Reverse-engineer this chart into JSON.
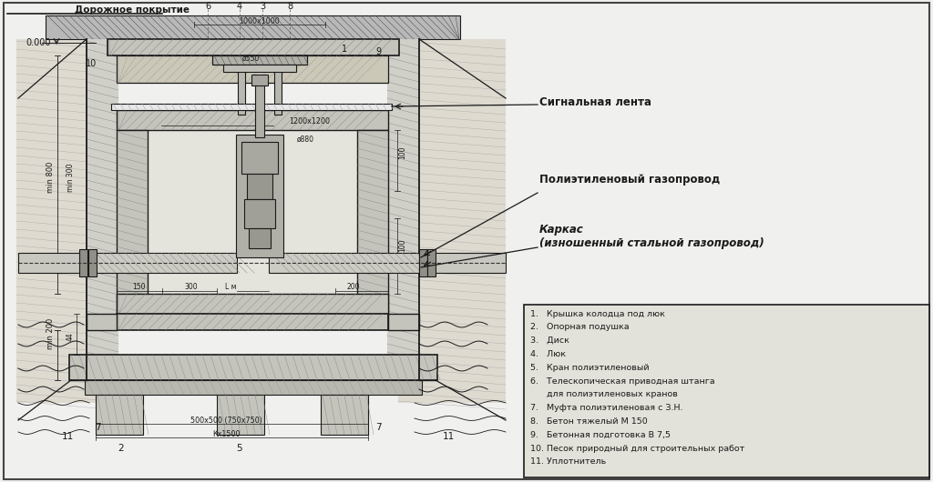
{
  "bg_color": "#f0f0ee",
  "legend_items": [
    "1.   Крышка колодца под люк",
    "2.   Опорная подушка",
    "3.   Диск",
    "4.   Люк",
    "5.   Кран полиэтиленовый",
    "6.   Телескопическая приводная штанга",
    "      для полиэтиленовых кранов",
    "7.   Муфта полиэтиленовая с З.Н.",
    "8.   Бетон тяжелый М 150",
    "9.   Бетонная подготовка В 7,5",
    "10. Песок природный для строительных работ",
    "11. Уплотнитель"
  ],
  "ann_right": [
    "Сигнальная лента",
    "Полиэтиленовый газопровод",
    "Каркас\n(изношенный стальной газопровод)"
  ],
  "top_label": "Дорожное покрытие",
  "zero_label": "0.000",
  "dims": {
    "d1": "1000х1000",
    "d2": "ø550",
    "d3": "1200х1200",
    "d4": "ø880",
    "d5": "500х500 (750х750)",
    "d6": "Кх1500",
    "d7": "min 800",
    "d8": "min 200",
    "d9": "150",
    "d10": "300",
    "d11": "L м",
    "d12": "200",
    "d13": "44",
    "d14": "min 300",
    "d15": "100",
    "d16": "100"
  },
  "black": "#1a1a1a",
  "gray_concrete": "#c4c4bc",
  "gray_sand": "#dedad0",
  "gray_light": "#d8d8d0"
}
